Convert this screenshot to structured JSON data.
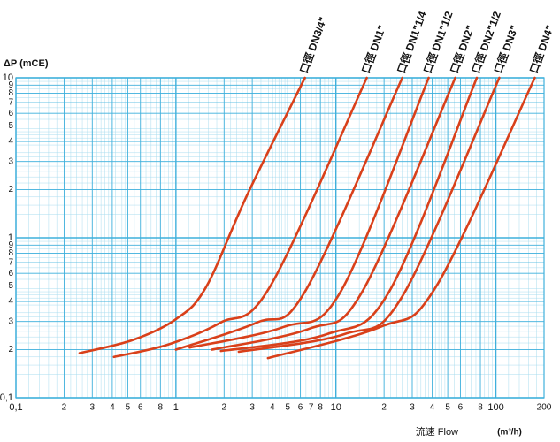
{
  "chart_data": {
    "type": "line",
    "log": true,
    "grid": true,
    "ylabel": "ΔP (mCE)",
    "xlabel": "流速 Flow",
    "xunit": "(m³/h)",
    "xlim": [
      0.1,
      200
    ],
    "ylim": [
      0.1,
      10
    ],
    "xticks": [
      {
        "value": 0.1,
        "label": "0,1"
      },
      {
        "value": 0.2,
        "label": "2"
      },
      {
        "value": 0.3,
        "label": "3"
      },
      {
        "value": 0.4,
        "label": "4"
      },
      {
        "value": 0.5,
        "label": "5"
      },
      {
        "value": 0.6,
        "label": "6"
      },
      {
        "value": 0.8,
        "label": "8"
      },
      1,
      {
        "value": 2,
        "label": "2"
      },
      3,
      4,
      5,
      6,
      7,
      8,
      10,
      {
        "value": 20,
        "label": "2"
      },
      {
        "value": 30,
        "label": "3"
      },
      {
        "value": 40,
        "label": "4"
      },
      {
        "value": 50,
        "label": "5"
      },
      {
        "value": 60,
        "label": "6"
      },
      {
        "value": 80,
        "label": "8"
      },
      100,
      200
    ],
    "yticks": [
      {
        "value": 0.1,
        "label": "0,1"
      },
      {
        "value": 0.2,
        "label": "2"
      },
      {
        "value": 0.3,
        "label": "3"
      },
      {
        "value": 0.4,
        "label": "4"
      },
      {
        "value": 0.5,
        "label": "5"
      },
      {
        "value": 0.6,
        "label": "6"
      },
      {
        "value": 0.7,
        "label": "7"
      },
      {
        "value": 0.8,
        "label": "8"
      },
      {
        "value": 0.9,
        "label": "9"
      },
      1,
      2,
      3,
      4,
      5,
      6,
      7,
      8,
      9,
      10
    ],
    "series": [
      {
        "name": "口徑 DN3/4\"",
        "color": "#d9401a",
        "x": [
          0.25,
          0.54,
          1.0,
          1.54,
          2.8,
          6.4
        ],
        "values": [
          0.19,
          0.23,
          0.31,
          0.49,
          1.87,
          10
        ]
      },
      {
        "name": "口徑 DN1\"",
        "color": "#d9401a",
        "x": [
          0.41,
          0.89,
          1.9,
          3.85,
          15.6
        ],
        "values": [
          0.18,
          0.215,
          0.295,
          0.49,
          10
        ]
      },
      {
        "name": "口徑 DN1\"1/4",
        "color": "#d9401a",
        "x": [
          1.0,
          3.2,
          6.4,
          26
        ],
        "values": [
          0.2,
          0.295,
          0.46,
          10
        ]
      },
      {
        "name": "口徑 DN1\"1/2",
        "color": "#d9401a",
        "x": [
          1.22,
          4.7,
          10.7,
          38
        ],
        "values": [
          0.206,
          0.277,
          0.46,
          10
        ]
      },
      {
        "name": "口徑 DN2\"",
        "color": "#d9401a",
        "x": [
          1.68,
          6.8,
          14.6,
          55.7
        ],
        "values": [
          0.2,
          0.27,
          0.46,
          10
        ]
      },
      {
        "name": "口徑 DN2\"1/2",
        "color": "#d9401a",
        "x": [
          1.91,
          8.8,
          21.5,
          76
        ],
        "values": [
          0.196,
          0.25,
          0.46,
          10
        ]
      },
      {
        "name": "口徑 DN3\"",
        "color": "#d9401a",
        "x": [
          2.47,
          11.3,
          26,
          105
        ],
        "values": [
          0.194,
          0.25,
          0.43,
          10
        ]
      },
      {
        "name": "口徑 DN4\"",
        "color": "#d9401a",
        "x": [
          3.76,
          18.9,
          42,
          175
        ],
        "values": [
          0.177,
          0.277,
          0.49,
          10
        ]
      }
    ]
  }
}
